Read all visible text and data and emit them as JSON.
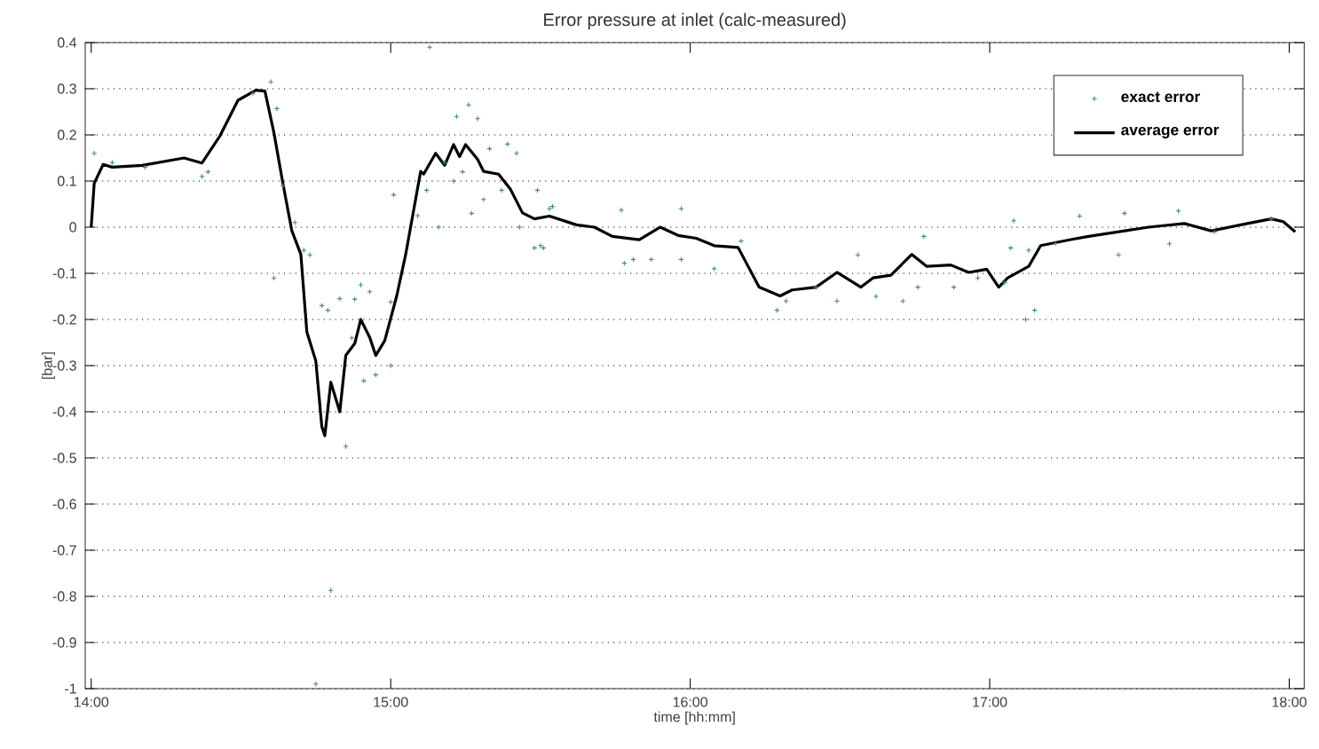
{
  "chart_data": {
    "type": "line",
    "title": "Error pressure at inlet (calc-measured)",
    "xlabel": "time [hh:mm]",
    "ylabel": "[bar]",
    "xlim": [
      13.98,
      18.05
    ],
    "ylim": [
      -1,
      0.4
    ],
    "xticks": [
      {
        "value": 14,
        "label": "14:00"
      },
      {
        "value": 15,
        "label": "15:00"
      },
      {
        "value": 16,
        "label": "16:00"
      },
      {
        "value": 17,
        "label": "17:00"
      },
      {
        "value": 18,
        "label": "18:00"
      }
    ],
    "yticks": [
      -1,
      -0.9,
      -0.8,
      -0.7,
      -0.6,
      -0.5,
      -0.4,
      -0.3,
      -0.2,
      -0.1,
      0,
      0.1,
      0.2,
      0.3,
      0.4
    ],
    "grid": "y",
    "legend": "top right",
    "series": [
      {
        "name": "exact error",
        "type": "scatter",
        "marker": "cross",
        "color": "#3a8c80",
        "x": [
          14.01,
          14.07,
          14.18,
          14.37,
          14.39,
          14.54,
          14.6,
          14.62,
          14.64,
          14.68,
          14.61,
          14.71,
          14.73,
          14.75,
          14.77,
          14.79,
          14.8,
          14.83,
          14.85,
          14.87,
          14.88,
          14.9,
          14.91,
          14.93,
          14.95,
          15.0,
          15.0,
          15.01,
          15.09,
          15.12,
          15.13,
          15.16,
          15.18,
          15.21,
          15.22,
          15.24,
          15.26,
          15.27,
          15.29,
          15.31,
          15.33,
          15.37,
          15.39,
          15.42,
          15.43,
          15.48,
          15.49,
          15.51,
          15.53,
          15.54,
          15.5,
          15.77,
          15.78,
          15.81,
          15.87,
          15.97,
          15.97,
          16.08,
          16.17,
          16.29,
          16.32,
          16.42,
          16.49,
          16.56,
          16.62,
          16.71,
          16.76,
          16.78,
          16.88,
          16.96,
          17.05,
          17.07,
          17.08,
          17.12,
          17.13,
          17.15,
          17.22,
          17.3,
          17.43,
          17.45,
          17.6,
          17.63,
          17.75,
          17.94
        ],
        "values": [
          0.16,
          0.14,
          0.13,
          0.11,
          0.12,
          0.29,
          0.315,
          0.257,
          0.09,
          0.01,
          -0.11,
          -0.05,
          -0.06,
          -0.99,
          -0.17,
          -0.18,
          -0.787,
          -0.155,
          -0.475,
          -0.24,
          -0.156,
          -0.125,
          -0.333,
          -0.14,
          -0.32,
          -0.162,
          -0.3,
          0.07,
          0.025,
          0.08,
          0.39,
          0,
          0.14,
          0.1,
          0.24,
          0.12,
          0.265,
          0.03,
          0.235,
          0.06,
          0.17,
          0.08,
          0.18,
          0.16,
          0,
          -0.045,
          0.08,
          -0.045,
          0.04,
          0.045,
          -0.04,
          0.037,
          -0.078,
          -0.07,
          -0.07,
          -0.07,
          0.04,
          -0.09,
          -0.03,
          -0.18,
          -0.16,
          -0.13,
          -0.16,
          -0.06,
          -0.15,
          -0.16,
          -0.13,
          -0.02,
          -0.13,
          -0.11,
          -0.12,
          -0.045,
          0.014,
          -0.2,
          -0.05,
          -0.18,
          -0.035,
          0.024,
          -0.06,
          0.03,
          -0.036,
          0.035,
          -0.01,
          0.018
        ]
      },
      {
        "name": "average error",
        "type": "line",
        "marker": "none",
        "line_style": "solid",
        "color": "#000000",
        "x": [
          14.0,
          14.01,
          14.04,
          14.07,
          14.17,
          14.31,
          14.37,
          14.43,
          14.49,
          14.55,
          14.58,
          14.61,
          14.64,
          14.67,
          14.7,
          14.72,
          14.75,
          14.77,
          14.78,
          14.8,
          14.83,
          14.85,
          14.88,
          14.9,
          14.93,
          14.95,
          14.98,
          15.02,
          15.05,
          15.1,
          15.11,
          15.15,
          15.18,
          15.21,
          15.23,
          15.25,
          15.29,
          15.31,
          15.36,
          15.4,
          15.44,
          15.48,
          15.53,
          15.62,
          15.68,
          15.74,
          15.83,
          15.9,
          15.96,
          16.02,
          16.08,
          16.16,
          16.23,
          16.3,
          16.34,
          16.42,
          16.49,
          16.57,
          16.61,
          16.67,
          16.74,
          16.79,
          16.87,
          16.93,
          16.99,
          17.03,
          17.06,
          17.13,
          17.17,
          17.27,
          17.33,
          17.45,
          17.53,
          17.65,
          17.74,
          17.86,
          17.94,
          17.98,
          18.02
        ],
        "values": [
          0,
          0.095,
          0.136,
          0.13,
          0.134,
          0.15,
          0.139,
          0.198,
          0.275,
          0.297,
          0.295,
          0.205,
          0.095,
          -0.008,
          -0.059,
          -0.227,
          -0.29,
          -0.432,
          -0.452,
          -0.336,
          -0.4,
          -0.278,
          -0.252,
          -0.2,
          -0.239,
          -0.278,
          -0.246,
          -0.149,
          -0.059,
          0.121,
          0.115,
          0.16,
          0.134,
          0.179,
          0.153,
          0.179,
          0.147,
          0.121,
          0.115,
          0.082,
          0.031,
          0.018,
          0.024,
          0.005,
          0,
          -0.02,
          -0.027,
          0,
          -0.018,
          -0.024,
          -0.04,
          -0.044,
          -0.13,
          -0.149,
          -0.136,
          -0.13,
          -0.098,
          -0.13,
          -0.11,
          -0.104,
          -0.059,
          -0.085,
          -0.082,
          -0.098,
          -0.091,
          -0.13,
          -0.11,
          -0.085,
          -0.04,
          -0.027,
          -0.02,
          -0.008,
          0,
          0.008,
          -0.008,
          0.008,
          0.018,
          0.012,
          -0.01
        ]
      }
    ]
  }
}
